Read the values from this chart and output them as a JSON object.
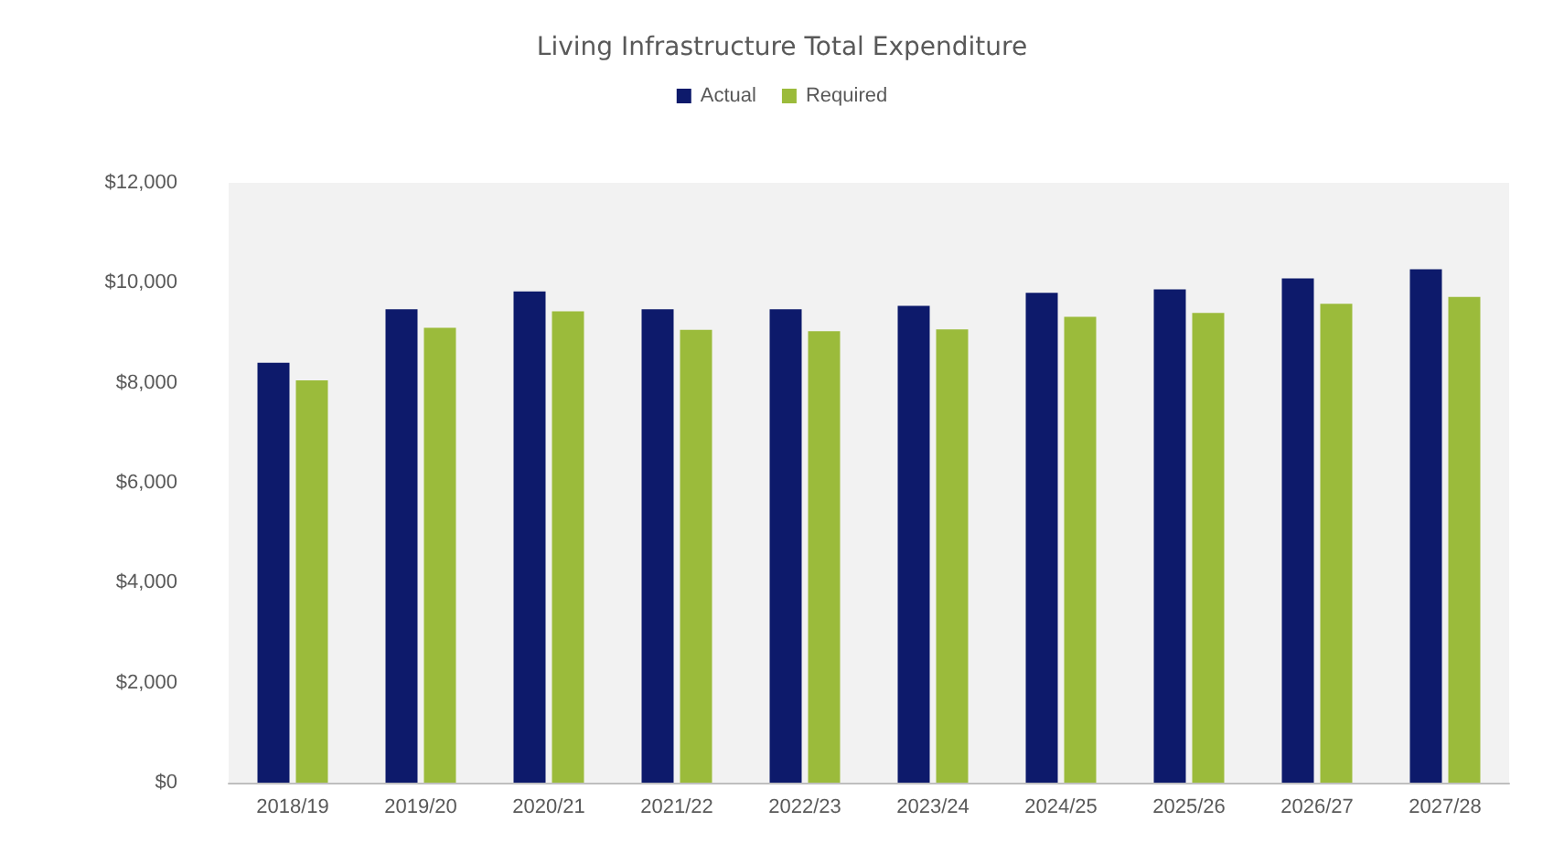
{
  "chart_data": {
    "type": "bar",
    "title": "Living Infrastructure Total Expenditure",
    "categories": [
      "2018/19",
      "2019/20",
      "2020/21",
      "2021/22",
      "2022/23",
      "2023/24",
      "2024/25",
      "2025/26",
      "2026/27",
      "2027/28"
    ],
    "series": [
      {
        "name": "Actual",
        "color": "#0d1a6b",
        "values": [
          8400,
          9470,
          9830,
          9470,
          9470,
          9540,
          9800,
          9870,
          10090,
          10270
        ]
      },
      {
        "name": "Required",
        "color": "#9bbb3b",
        "values": [
          8050,
          9100,
          9430,
          9060,
          9030,
          9070,
          9320,
          9400,
          9580,
          9720
        ]
      }
    ],
    "ylim": [
      0,
      12000
    ],
    "yticks": [
      {
        "value": 0,
        "label": "$0"
      },
      {
        "value": 2000,
        "label": "$2,000"
      },
      {
        "value": 4000,
        "label": "$4,000"
      },
      {
        "value": 6000,
        "label": "$6,000"
      },
      {
        "value": 8000,
        "label": "$8,000"
      },
      {
        "value": 10000,
        "label": "$10,000"
      },
      {
        "value": 12000,
        "label": "$12,000"
      }
    ],
    "grid": false,
    "legend": "top"
  }
}
